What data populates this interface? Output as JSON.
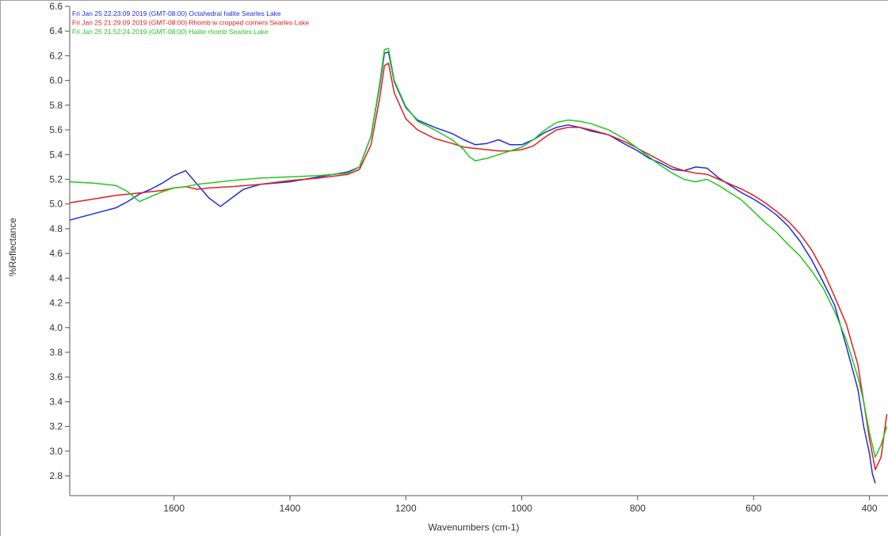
{
  "chart_data": {
    "type": "line",
    "xlabel": "Wavenumbers (cm-1)",
    "ylabel": "%Reflectance",
    "xlim": [
      1780,
      368
    ],
    "ylim": [
      2.64,
      6.6
    ],
    "x_ticks": [
      1600,
      1400,
      1200,
      1000,
      800,
      600,
      400
    ],
    "y_ticks": [
      2.8,
      3.0,
      3.2,
      3.4,
      3.6,
      3.8,
      4.0,
      4.2,
      4.4,
      4.6,
      4.8,
      5.0,
      5.2,
      5.4,
      5.6,
      5.8,
      6.0,
      6.2,
      6.4,
      6.6
    ],
    "grid": false,
    "legend_position": "top-left",
    "series": [
      {
        "name": "Fri Jan 25 22:23:09 2019 (GMT-08:00) Octahedral halite Searles Lake",
        "color": "#1f2fd6",
        "x": [
          1780,
          1740,
          1700,
          1680,
          1660,
          1640,
          1620,
          1600,
          1580,
          1560,
          1540,
          1520,
          1500,
          1480,
          1450,
          1400,
          1350,
          1300,
          1280,
          1260,
          1245,
          1237,
          1230,
          1220,
          1200,
          1180,
          1150,
          1120,
          1100,
          1080,
          1060,
          1040,
          1020,
          1000,
          980,
          960,
          940,
          920,
          900,
          880,
          850,
          820,
          800,
          780,
          760,
          740,
          720,
          700,
          680,
          660,
          640,
          620,
          600,
          580,
          560,
          540,
          520,
          500,
          480,
          460,
          440,
          420,
          410,
          400,
          395,
          390
        ],
        "y": [
          4.87,
          4.92,
          4.97,
          5.02,
          5.08,
          5.12,
          5.17,
          5.23,
          5.27,
          5.16,
          5.05,
          4.98,
          5.05,
          5.12,
          5.16,
          5.18,
          5.22,
          5.26,
          5.3,
          5.55,
          5.96,
          6.22,
          6.23,
          5.99,
          5.78,
          5.68,
          5.62,
          5.57,
          5.52,
          5.48,
          5.49,
          5.52,
          5.48,
          5.48,
          5.52,
          5.58,
          5.62,
          5.64,
          5.62,
          5.59,
          5.56,
          5.48,
          5.43,
          5.37,
          5.33,
          5.28,
          5.27,
          5.3,
          5.29,
          5.21,
          5.15,
          5.09,
          5.04,
          4.98,
          4.91,
          4.82,
          4.7,
          4.55,
          4.37,
          4.18,
          3.85,
          3.5,
          3.2,
          2.98,
          2.82,
          2.74
        ]
      },
      {
        "name": "Fri Jan 25 21:29:09 2019 (GMT-08:00) Rhomb w cropped corners Searles Lake",
        "color": "#e01f1f",
        "x": [
          1780,
          1740,
          1700,
          1660,
          1620,
          1600,
          1580,
          1560,
          1540,
          1500,
          1450,
          1400,
          1350,
          1300,
          1280,
          1260,
          1245,
          1237,
          1230,
          1220,
          1200,
          1180,
          1150,
          1120,
          1100,
          1080,
          1060,
          1040,
          1020,
          1000,
          980,
          960,
          940,
          920,
          900,
          880,
          850,
          820,
          800,
          780,
          760,
          740,
          720,
          700,
          680,
          660,
          640,
          620,
          600,
          580,
          560,
          540,
          520,
          500,
          480,
          460,
          440,
          420,
          410,
          400,
          390,
          380,
          370
        ],
        "y": [
          5.01,
          5.04,
          5.07,
          5.09,
          5.11,
          5.13,
          5.14,
          5.12,
          5.13,
          5.14,
          5.16,
          5.19,
          5.21,
          5.24,
          5.28,
          5.48,
          5.86,
          6.12,
          6.14,
          5.9,
          5.69,
          5.6,
          5.53,
          5.49,
          5.46,
          5.45,
          5.44,
          5.43,
          5.43,
          5.44,
          5.47,
          5.54,
          5.6,
          5.62,
          5.62,
          5.6,
          5.56,
          5.5,
          5.45,
          5.4,
          5.35,
          5.3,
          5.27,
          5.25,
          5.24,
          5.2,
          5.16,
          5.12,
          5.07,
          5.01,
          4.94,
          4.86,
          4.76,
          4.63,
          4.46,
          4.25,
          4.03,
          3.7,
          3.4,
          3.1,
          2.85,
          2.95,
          3.3
        ]
      },
      {
        "name": "Fri Jan 25 21:52:24 2019 (GMT-08:00) Halite rhomb Searles Lake",
        "color": "#22c81e",
        "x": [
          1780,
          1740,
          1700,
          1680,
          1660,
          1640,
          1620,
          1600,
          1580,
          1560,
          1540,
          1500,
          1450,
          1400,
          1350,
          1300,
          1280,
          1260,
          1245,
          1237,
          1230,
          1220,
          1200,
          1180,
          1150,
          1120,
          1100,
          1090,
          1080,
          1060,
          1040,
          1020,
          1000,
          980,
          960,
          940,
          920,
          900,
          880,
          850,
          820,
          800,
          780,
          760,
          740,
          720,
          700,
          680,
          660,
          640,
          620,
          600,
          580,
          560,
          540,
          520,
          500,
          480,
          460,
          440,
          420,
          410,
          400,
          390,
          380,
          370
        ],
        "y": [
          5.18,
          5.17,
          5.15,
          5.1,
          5.02,
          5.06,
          5.1,
          5.13,
          5.14,
          5.16,
          5.17,
          5.19,
          5.21,
          5.22,
          5.23,
          5.25,
          5.3,
          5.55,
          5.98,
          6.25,
          6.26,
          6.0,
          5.79,
          5.67,
          5.6,
          5.52,
          5.44,
          5.38,
          5.35,
          5.37,
          5.4,
          5.43,
          5.46,
          5.52,
          5.6,
          5.66,
          5.68,
          5.67,
          5.65,
          5.6,
          5.52,
          5.45,
          5.38,
          5.31,
          5.25,
          5.2,
          5.18,
          5.2,
          5.15,
          5.09,
          5.03,
          4.94,
          4.85,
          4.77,
          4.67,
          4.58,
          4.46,
          4.32,
          4.13,
          3.9,
          3.6,
          3.4,
          3.15,
          2.95,
          3.05,
          3.2
        ]
      }
    ]
  }
}
